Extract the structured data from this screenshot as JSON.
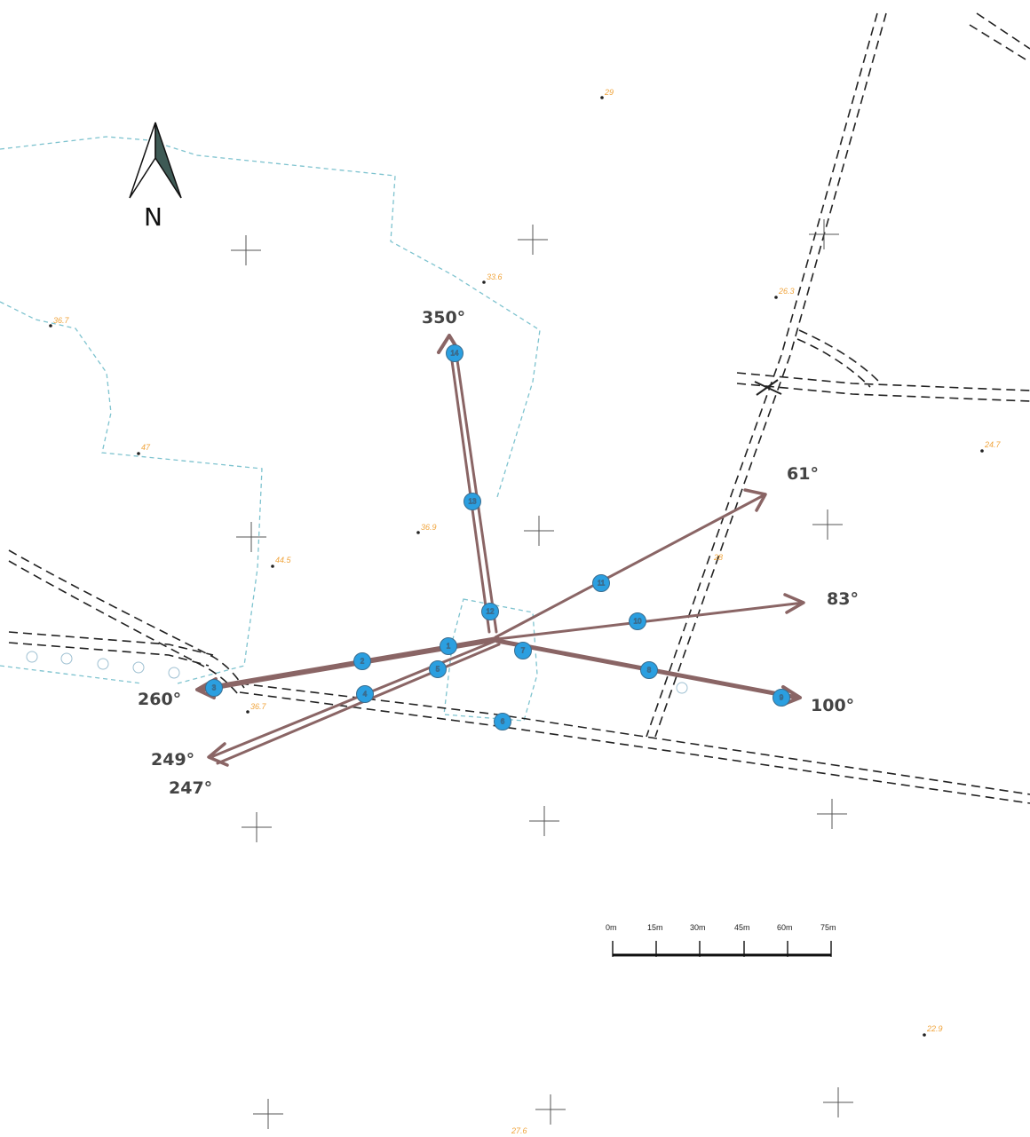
{
  "north_arrow": {
    "letter": "N",
    "icon": "north-arrow-icon"
  },
  "bearings": {
    "b350": "350°",
    "b61": "61°",
    "b83": "83°",
    "b100": "100°",
    "b260": "260°",
    "b249": "249°",
    "b247": "247°"
  },
  "spot_heights": {
    "s1": "29",
    "s2": "33.6",
    "s3": "36.7",
    "s4": "26.3",
    "s5": "47",
    "s6": "24.7",
    "s7": "36.9",
    "s8": "44.5",
    "s9": "28",
    "s10": "36.7",
    "s11": "22.9",
    "s12": "27.6"
  },
  "scale_bar": {
    "labels": [
      "0m",
      "15m",
      "30m",
      "45m",
      "60m",
      "75m"
    ]
  },
  "markers": {
    "m1": "1",
    "m2": "2",
    "m3": "3",
    "m4": "4",
    "m5": "5",
    "m6": "6",
    "m7": "7",
    "m8": "8",
    "m9": "9",
    "m10": "10",
    "m11": "11",
    "m12": "12",
    "m13": "13",
    "m14": "14"
  },
  "colors": {
    "arrow": "#8a6565",
    "marker_fill": "#2b9fe0",
    "boundary": "#7ec3cf",
    "road": "#222222",
    "spot_height": "#f0a43c",
    "grid_cross": "#555555"
  }
}
